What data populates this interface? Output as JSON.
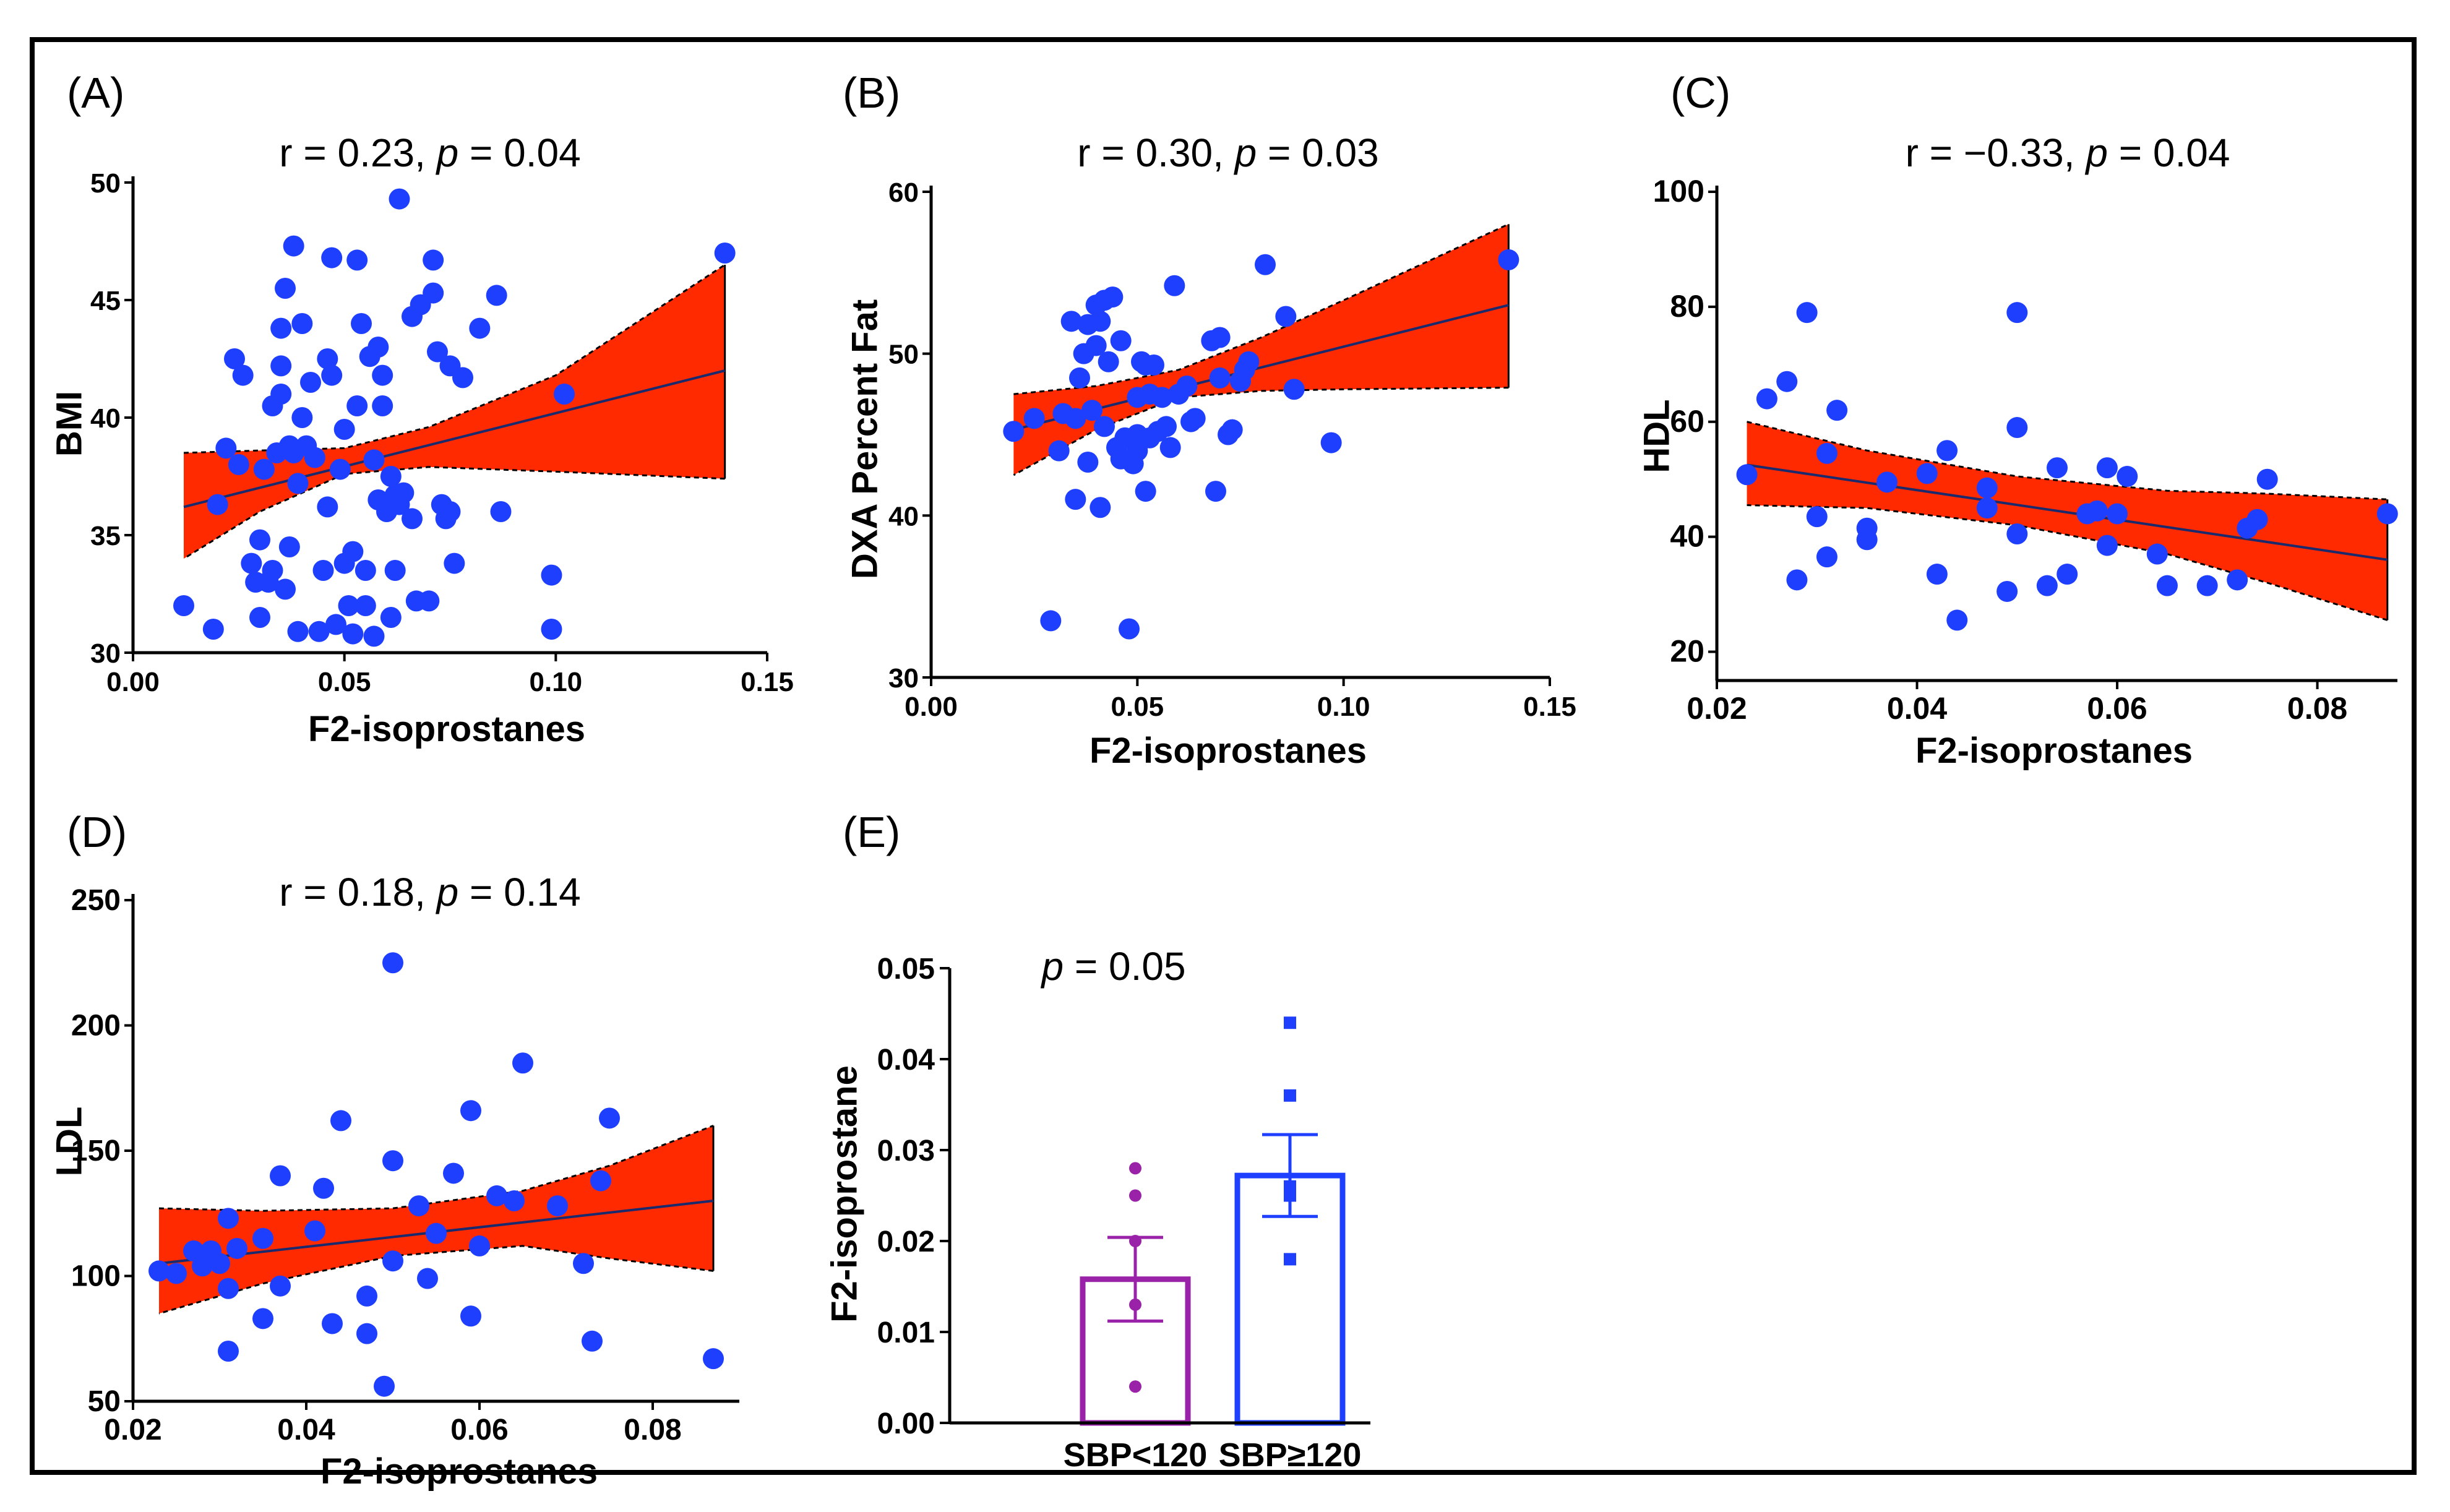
{
  "colors": {
    "point": "#1f3fff",
    "band": "#ff2a00",
    "line": "#1a2a6c",
    "bar1": "#9a22a8",
    "bar2": "#1f3fff",
    "axis": "#000000"
  },
  "chart_data": [
    {
      "id": "A",
      "panel_label": "(A)",
      "type": "scatter",
      "stat": {
        "r_text": "r = 0.23, ",
        "p_symbol": "p",
        "p_text": " = 0.04"
      },
      "xlabel": "F2-isoprostanes",
      "ylabel": "BMI",
      "xlim": [
        0,
        0.15
      ],
      "ylim": [
        30,
        50
      ],
      "xticks": [
        0,
        0.05,
        0.1,
        0.15
      ],
      "xtick_labels": [
        "0.00",
        "0.05",
        "0.10",
        "0.15"
      ],
      "yticks": [
        30,
        35,
        40,
        45,
        50
      ],
      "ytick_labels": [
        "30",
        "35",
        "40",
        "45",
        "50"
      ],
      "fit": {
        "x0": 0.012,
        "y0": 36.2,
        "x1": 0.14,
        "y1": 42.0
      },
      "band": {
        "x": [
          0.012,
          0.03,
          0.05,
          0.07,
          0.1,
          0.14
        ],
        "lower": [
          34.0,
          36.0,
          37.6,
          37.9,
          37.7,
          37.4
        ],
        "upper": [
          38.5,
          38.6,
          38.7,
          39.6,
          41.8,
          46.5
        ]
      },
      "points": [
        [
          0.012,
          32.0
        ],
        [
          0.019,
          31.0
        ],
        [
          0.02,
          36.3
        ],
        [
          0.022,
          38.7
        ],
        [
          0.024,
          42.5
        ],
        [
          0.025,
          38.0
        ],
        [
          0.026,
          41.8
        ],
        [
          0.028,
          33.8
        ],
        [
          0.029,
          33.0
        ],
        [
          0.03,
          31.5
        ],
        [
          0.03,
          34.8
        ],
        [
          0.031,
          37.8
        ],
        [
          0.032,
          33.0
        ],
        [
          0.033,
          33.5
        ],
        [
          0.033,
          40.5
        ],
        [
          0.034,
          38.5
        ],
        [
          0.035,
          43.8
        ],
        [
          0.035,
          42.2
        ],
        [
          0.035,
          41.0
        ],
        [
          0.036,
          45.5
        ],
        [
          0.036,
          32.7
        ],
        [
          0.037,
          34.5
        ],
        [
          0.037,
          38.8
        ],
        [
          0.038,
          47.3
        ],
        [
          0.038,
          38.5
        ],
        [
          0.039,
          30.9
        ],
        [
          0.039,
          37.2
        ],
        [
          0.04,
          40.0
        ],
        [
          0.04,
          44.0
        ],
        [
          0.041,
          38.8
        ],
        [
          0.042,
          41.5
        ],
        [
          0.043,
          38.3
        ],
        [
          0.044,
          30.9
        ],
        [
          0.045,
          33.5
        ],
        [
          0.046,
          42.5
        ],
        [
          0.046,
          36.2
        ],
        [
          0.047,
          41.8
        ],
        [
          0.047,
          46.8
        ],
        [
          0.048,
          31.2
        ],
        [
          0.049,
          37.8
        ],
        [
          0.05,
          39.5
        ],
        [
          0.05,
          33.8
        ],
        [
          0.051,
          32.0
        ],
        [
          0.052,
          34.3
        ],
        [
          0.052,
          30.8
        ],
        [
          0.053,
          46.7
        ],
        [
          0.053,
          40.5
        ],
        [
          0.054,
          44.0
        ],
        [
          0.055,
          32.0
        ],
        [
          0.055,
          33.5
        ],
        [
          0.056,
          42.6
        ],
        [
          0.057,
          30.7
        ],
        [
          0.057,
          38.2
        ],
        [
          0.058,
          43.0
        ],
        [
          0.058,
          36.5
        ],
        [
          0.059,
          40.5
        ],
        [
          0.059,
          41.8
        ],
        [
          0.06,
          36.0
        ],
        [
          0.061,
          37.5
        ],
        [
          0.061,
          31.5
        ],
        [
          0.062,
          33.5
        ],
        [
          0.062,
          36.7
        ],
        [
          0.063,
          49.3
        ],
        [
          0.063,
          36.3
        ],
        [
          0.064,
          36.8
        ],
        [
          0.066,
          44.3
        ],
        [
          0.066,
          35.7
        ],
        [
          0.067,
          32.2
        ],
        [
          0.068,
          44.8
        ],
        [
          0.07,
          32.2
        ],
        [
          0.071,
          45.3
        ],
        [
          0.071,
          46.7
        ],
        [
          0.072,
          42.8
        ],
        [
          0.073,
          36.3
        ],
        [
          0.074,
          35.7
        ],
        [
          0.075,
          42.2
        ],
        [
          0.075,
          36.0
        ],
        [
          0.076,
          33.8
        ],
        [
          0.078,
          41.7
        ],
        [
          0.082,
          43.8
        ],
        [
          0.086,
          45.2
        ],
        [
          0.087,
          36.0
        ],
        [
          0.099,
          33.3
        ],
        [
          0.099,
          31.0
        ],
        [
          0.102,
          41.0
        ],
        [
          0.14,
          47.0
        ]
      ]
    },
    {
      "id": "B",
      "panel_label": "(B)",
      "type": "scatter",
      "stat": {
        "r_text": "r = 0.30, ",
        "p_symbol": "p",
        "p_text": " = 0.03"
      },
      "xlabel": "F2-isoprostanes",
      "ylabel": "DXA Percent Fat",
      "xlim": [
        0,
        0.15
      ],
      "ylim": [
        30,
        60
      ],
      "xticks": [
        0,
        0.05,
        0.1,
        0.15
      ],
      "xtick_labels": [
        "0.00",
        "0.05",
        "0.10",
        "0.15"
      ],
      "yticks": [
        30,
        40,
        50,
        60
      ],
      "ytick_labels": [
        "30",
        "40",
        "50",
        "60"
      ],
      "fit": {
        "x0": 0.02,
        "y0": 45.3,
        "x1": 0.14,
        "y1": 53.0
      },
      "band": {
        "x": [
          0.02,
          0.04,
          0.06,
          0.08,
          0.1,
          0.14
        ],
        "lower": [
          42.5,
          45.3,
          47.3,
          47.7,
          47.8,
          47.9
        ],
        "upper": [
          47.5,
          48.0,
          49.0,
          51.0,
          53.3,
          58.0
        ]
      },
      "points": [
        [
          0.02,
          45.2
        ],
        [
          0.025,
          46.0
        ],
        [
          0.029,
          33.5
        ],
        [
          0.031,
          44.0
        ],
        [
          0.032,
          46.3
        ],
        [
          0.034,
          52.0
        ],
        [
          0.035,
          46.0
        ],
        [
          0.035,
          41.0
        ],
        [
          0.036,
          48.5
        ],
        [
          0.037,
          50.0
        ],
        [
          0.038,
          51.8
        ],
        [
          0.038,
          43.3
        ],
        [
          0.039,
          46.5
        ],
        [
          0.04,
          53.0
        ],
        [
          0.04,
          50.5
        ],
        [
          0.041,
          52.0
        ],
        [
          0.041,
          40.5
        ],
        [
          0.042,
          53.3
        ],
        [
          0.042,
          45.5
        ],
        [
          0.043,
          49.5
        ],
        [
          0.044,
          53.5
        ],
        [
          0.045,
          44.2
        ],
        [
          0.046,
          50.8
        ],
        [
          0.046,
          43.5
        ],
        [
          0.047,
          44.8
        ],
        [
          0.048,
          33.0
        ],
        [
          0.049,
          43.2
        ],
        [
          0.05,
          47.3
        ],
        [
          0.05,
          45.0
        ],
        [
          0.05,
          44.0
        ],
        [
          0.051,
          49.5
        ],
        [
          0.052,
          41.5
        ],
        [
          0.052,
          49.3
        ],
        [
          0.053,
          47.5
        ],
        [
          0.053,
          44.8
        ],
        [
          0.054,
          49.3
        ],
        [
          0.055,
          45.2
        ],
        [
          0.056,
          47.3
        ],
        [
          0.057,
          45.5
        ],
        [
          0.058,
          44.2
        ],
        [
          0.059,
          54.2
        ],
        [
          0.06,
          47.5
        ],
        [
          0.062,
          48.0
        ],
        [
          0.063,
          45.8
        ],
        [
          0.064,
          46.0
        ],
        [
          0.068,
          50.8
        ],
        [
          0.069,
          41.5
        ],
        [
          0.07,
          48.5
        ],
        [
          0.07,
          51.0
        ],
        [
          0.072,
          45.0
        ],
        [
          0.073,
          45.3
        ],
        [
          0.075,
          48.3
        ],
        [
          0.076,
          49.0
        ],
        [
          0.077,
          49.5
        ],
        [
          0.081,
          55.5
        ],
        [
          0.086,
          52.3
        ],
        [
          0.088,
          47.8
        ],
        [
          0.097,
          44.5
        ],
        [
          0.14,
          55.8
        ]
      ]
    },
    {
      "id": "C",
      "panel_label": "(C)",
      "type": "scatter",
      "stat": {
        "r_text": "r = −0.33, ",
        "p_symbol": "p",
        "p_text": " = 0.04"
      },
      "xlabel": "F2-isoprostanes",
      "ylabel": "HDL",
      "xlim": [
        0.02,
        0.088
      ],
      "ylim": [
        15,
        100
      ],
      "xticks": [
        0.02,
        0.04,
        0.06,
        0.08
      ],
      "xtick_labels": [
        "0.02",
        "0.04",
        "0.06",
        "0.08"
      ],
      "yticks": [
        20,
        40,
        60,
        80,
        100
      ],
      "ytick_labels": [
        "20",
        "40",
        "60",
        "80",
        "100"
      ],
      "fit": {
        "x0": 0.023,
        "y0": 52.5,
        "x1": 0.087,
        "y1": 36.0
      },
      "band": {
        "x": [
          0.023,
          0.035,
          0.05,
          0.065,
          0.075,
          0.087
        ],
        "lower": [
          45.5,
          45.0,
          42.0,
          37.0,
          32.0,
          25.5
        ],
        "upper": [
          60.0,
          55.0,
          50.5,
          48.0,
          47.5,
          46.5
        ]
      },
      "points": [
        [
          0.023,
          50.8
        ],
        [
          0.025,
          64.0
        ],
        [
          0.027,
          67.0
        ],
        [
          0.028,
          32.5
        ],
        [
          0.029,
          79.0
        ],
        [
          0.03,
          43.5
        ],
        [
          0.031,
          54.5
        ],
        [
          0.031,
          36.5
        ],
        [
          0.032,
          62.0
        ],
        [
          0.035,
          39.5
        ],
        [
          0.035,
          41.5
        ],
        [
          0.037,
          49.5
        ],
        [
          0.041,
          51.0
        ],
        [
          0.042,
          33.5
        ],
        [
          0.043,
          55.0
        ],
        [
          0.044,
          25.5
        ],
        [
          0.047,
          45.0
        ],
        [
          0.047,
          48.5
        ],
        [
          0.049,
          30.5
        ],
        [
          0.05,
          79.0
        ],
        [
          0.05,
          59.0
        ],
        [
          0.05,
          40.5
        ],
        [
          0.053,
          31.5
        ],
        [
          0.054,
          52.0
        ],
        [
          0.055,
          33.5
        ],
        [
          0.057,
          44.0
        ],
        [
          0.058,
          44.5
        ],
        [
          0.059,
          38.5
        ],
        [
          0.059,
          52.0
        ],
        [
          0.06,
          44.0
        ],
        [
          0.061,
          50.5
        ],
        [
          0.064,
          37.0
        ],
        [
          0.065,
          31.5
        ],
        [
          0.069,
          31.5
        ],
        [
          0.072,
          32.5
        ],
        [
          0.073,
          41.5
        ],
        [
          0.074,
          43.0
        ],
        [
          0.075,
          50.0
        ],
        [
          0.087,
          44.0
        ]
      ]
    },
    {
      "id": "D",
      "panel_label": "(D)",
      "type": "scatter",
      "stat": {
        "r_text": "r = 0.18, ",
        "p_symbol": "p",
        "p_text": " = 0.14"
      },
      "xlabel": "F2-isoprostanes",
      "ylabel": "LDL",
      "xlim": [
        0.02,
        0.09
      ],
      "ylim": [
        50,
        250
      ],
      "xticks": [
        0.02,
        0.04,
        0.06,
        0.08
      ],
      "xtick_labels": [
        "0.02",
        "0.04",
        "0.06",
        "0.08"
      ],
      "yticks": [
        50,
        100,
        150,
        200,
        250
      ],
      "ytick_labels": [
        "50",
        "100",
        "150",
        "200",
        "250"
      ],
      "fit": {
        "x0": 0.023,
        "y0": 105,
        "x1": 0.087,
        "y1": 130
      },
      "band": {
        "x": [
          0.023,
          0.035,
          0.05,
          0.065,
          0.075,
          0.087
        ],
        "lower": [
          85,
          97,
          108,
          112,
          107,
          102
        ],
        "upper": [
          127,
          126,
          127,
          134,
          144,
          160
        ]
      },
      "points": [
        [
          0.023,
          102
        ],
        [
          0.025,
          101
        ],
        [
          0.027,
          110
        ],
        [
          0.028,
          104
        ],
        [
          0.029,
          110
        ],
        [
          0.03,
          105
        ],
        [
          0.031,
          95
        ],
        [
          0.031,
          123
        ],
        [
          0.031,
          70
        ],
        [
          0.032,
          111
        ],
        [
          0.035,
          83
        ],
        [
          0.035,
          115
        ],
        [
          0.037,
          140
        ],
        [
          0.037,
          96
        ],
        [
          0.041,
          118
        ],
        [
          0.042,
          135
        ],
        [
          0.043,
          81
        ],
        [
          0.044,
          162
        ],
        [
          0.047,
          77
        ],
        [
          0.047,
          92
        ],
        [
          0.049,
          56
        ],
        [
          0.05,
          225
        ],
        [
          0.05,
          146
        ],
        [
          0.05,
          106
        ],
        [
          0.053,
          128
        ],
        [
          0.054,
          99
        ],
        [
          0.055,
          117
        ],
        [
          0.057,
          141
        ],
        [
          0.059,
          84
        ],
        [
          0.059,
          166
        ],
        [
          0.06,
          112
        ],
        [
          0.062,
          132
        ],
        [
          0.064,
          130
        ],
        [
          0.065,
          185
        ],
        [
          0.069,
          128
        ],
        [
          0.072,
          105
        ],
        [
          0.073,
          74
        ],
        [
          0.074,
          138
        ],
        [
          0.075,
          163
        ],
        [
          0.087,
          67
        ]
      ]
    },
    {
      "id": "E",
      "panel_label": "(E)",
      "type": "bar",
      "stat": {
        "r_text": "",
        "p_symbol": "p",
        "p_text": " = 0.05"
      },
      "xlabel": "",
      "ylabel": "F2-isoprostane",
      "categories": [
        "SBP<120",
        "SBP≥120"
      ],
      "values": [
        0.0158,
        0.0272
      ],
      "error": [
        0.0046,
        0.0045
      ],
      "ylim": [
        0,
        0.05
      ],
      "yticks": [
        0,
        0.01,
        0.02,
        0.03,
        0.04,
        0.05
      ],
      "ytick_labels": [
        "0.00",
        "0.01",
        "0.02",
        "0.03",
        "0.04",
        "0.05"
      ],
      "points": [
        [
          [
            0,
            0.028
          ],
          [
            0,
            0.025
          ],
          [
            0,
            0.02
          ],
          [
            0,
            0.013
          ],
          [
            0,
            0.004
          ]
        ],
        [
          [
            1,
            0.044
          ],
          [
            1,
            0.036
          ],
          [
            1,
            0.026
          ],
          [
            1,
            0.025
          ],
          [
            1,
            0.018
          ]
        ]
      ]
    }
  ]
}
